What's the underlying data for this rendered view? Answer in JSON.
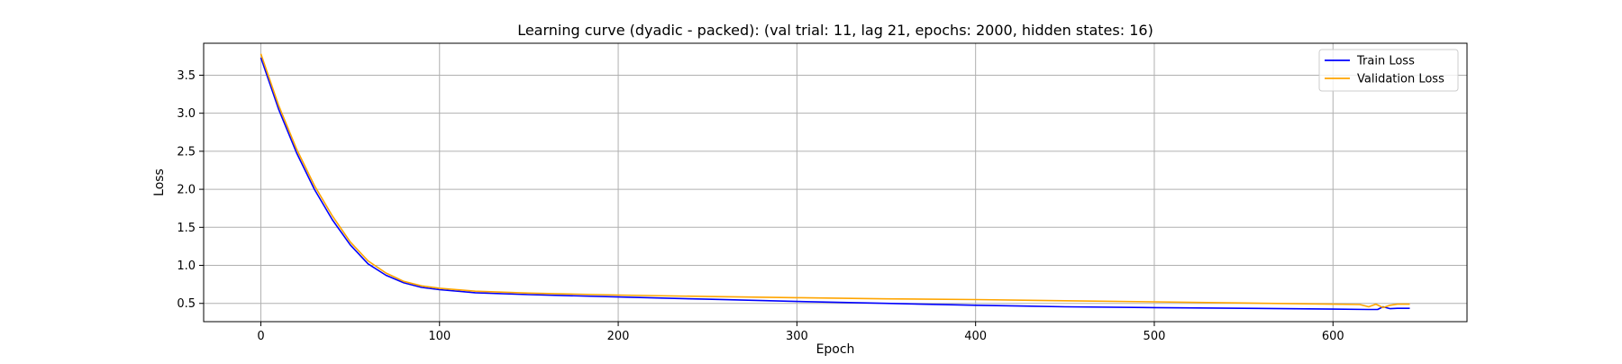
{
  "chart_data": {
    "type": "line",
    "title": "Learning curve (dyadic - packed): (val trial: 11, lag 21, epochs: 2000, hidden states: 16)",
    "xlabel": "Epoch",
    "ylabel": "Loss",
    "xlim": [
      -32,
      675
    ],
    "ylim": [
      0.26,
      3.92
    ],
    "xticks": [
      0,
      100,
      200,
      300,
      400,
      500,
      600
    ],
    "yticks": [
      0.5,
      1.0,
      1.5,
      2.0,
      2.5,
      3.0,
      3.5
    ],
    "xtick_labels": [
      "0",
      "100",
      "200",
      "300",
      "400",
      "500",
      "600"
    ],
    "ytick_labels": [
      "0.5",
      "1.0",
      "1.5",
      "2.0",
      "2.5",
      "3.0",
      "3.5"
    ],
    "grid": true,
    "legend_position": "top-right",
    "series": [
      {
        "name": "Train Loss",
        "color": "#0000ff",
        "x": [
          0,
          10,
          20,
          30,
          40,
          50,
          60,
          70,
          80,
          90,
          100,
          120,
          150,
          200,
          250,
          300,
          350,
          400,
          450,
          500,
          550,
          600,
          620,
          625,
          628,
          632,
          636,
          643
        ],
        "y": [
          3.73,
          3.05,
          2.48,
          2.0,
          1.6,
          1.27,
          1.02,
          0.87,
          0.77,
          0.71,
          0.68,
          0.64,
          0.615,
          0.585,
          0.555,
          0.525,
          0.5,
          0.475,
          0.455,
          0.445,
          0.435,
          0.425,
          0.42,
          0.42,
          0.455,
          0.43,
          0.435,
          0.435
        ]
      },
      {
        "name": "Validation Loss",
        "color": "#ffa500",
        "x": [
          0,
          10,
          20,
          30,
          40,
          50,
          60,
          70,
          80,
          90,
          100,
          120,
          150,
          200,
          250,
          300,
          350,
          400,
          450,
          500,
          550,
          600,
          615,
          620,
          624,
          628,
          632,
          636,
          643
        ],
        "y": [
          3.78,
          3.1,
          2.53,
          2.05,
          1.65,
          1.31,
          1.06,
          0.9,
          0.79,
          0.73,
          0.7,
          0.66,
          0.635,
          0.61,
          0.59,
          0.575,
          0.56,
          0.55,
          0.535,
          0.52,
          0.505,
          0.49,
          0.485,
          0.455,
          0.49,
          0.445,
          0.475,
          0.49,
          0.49
        ]
      }
    ]
  }
}
